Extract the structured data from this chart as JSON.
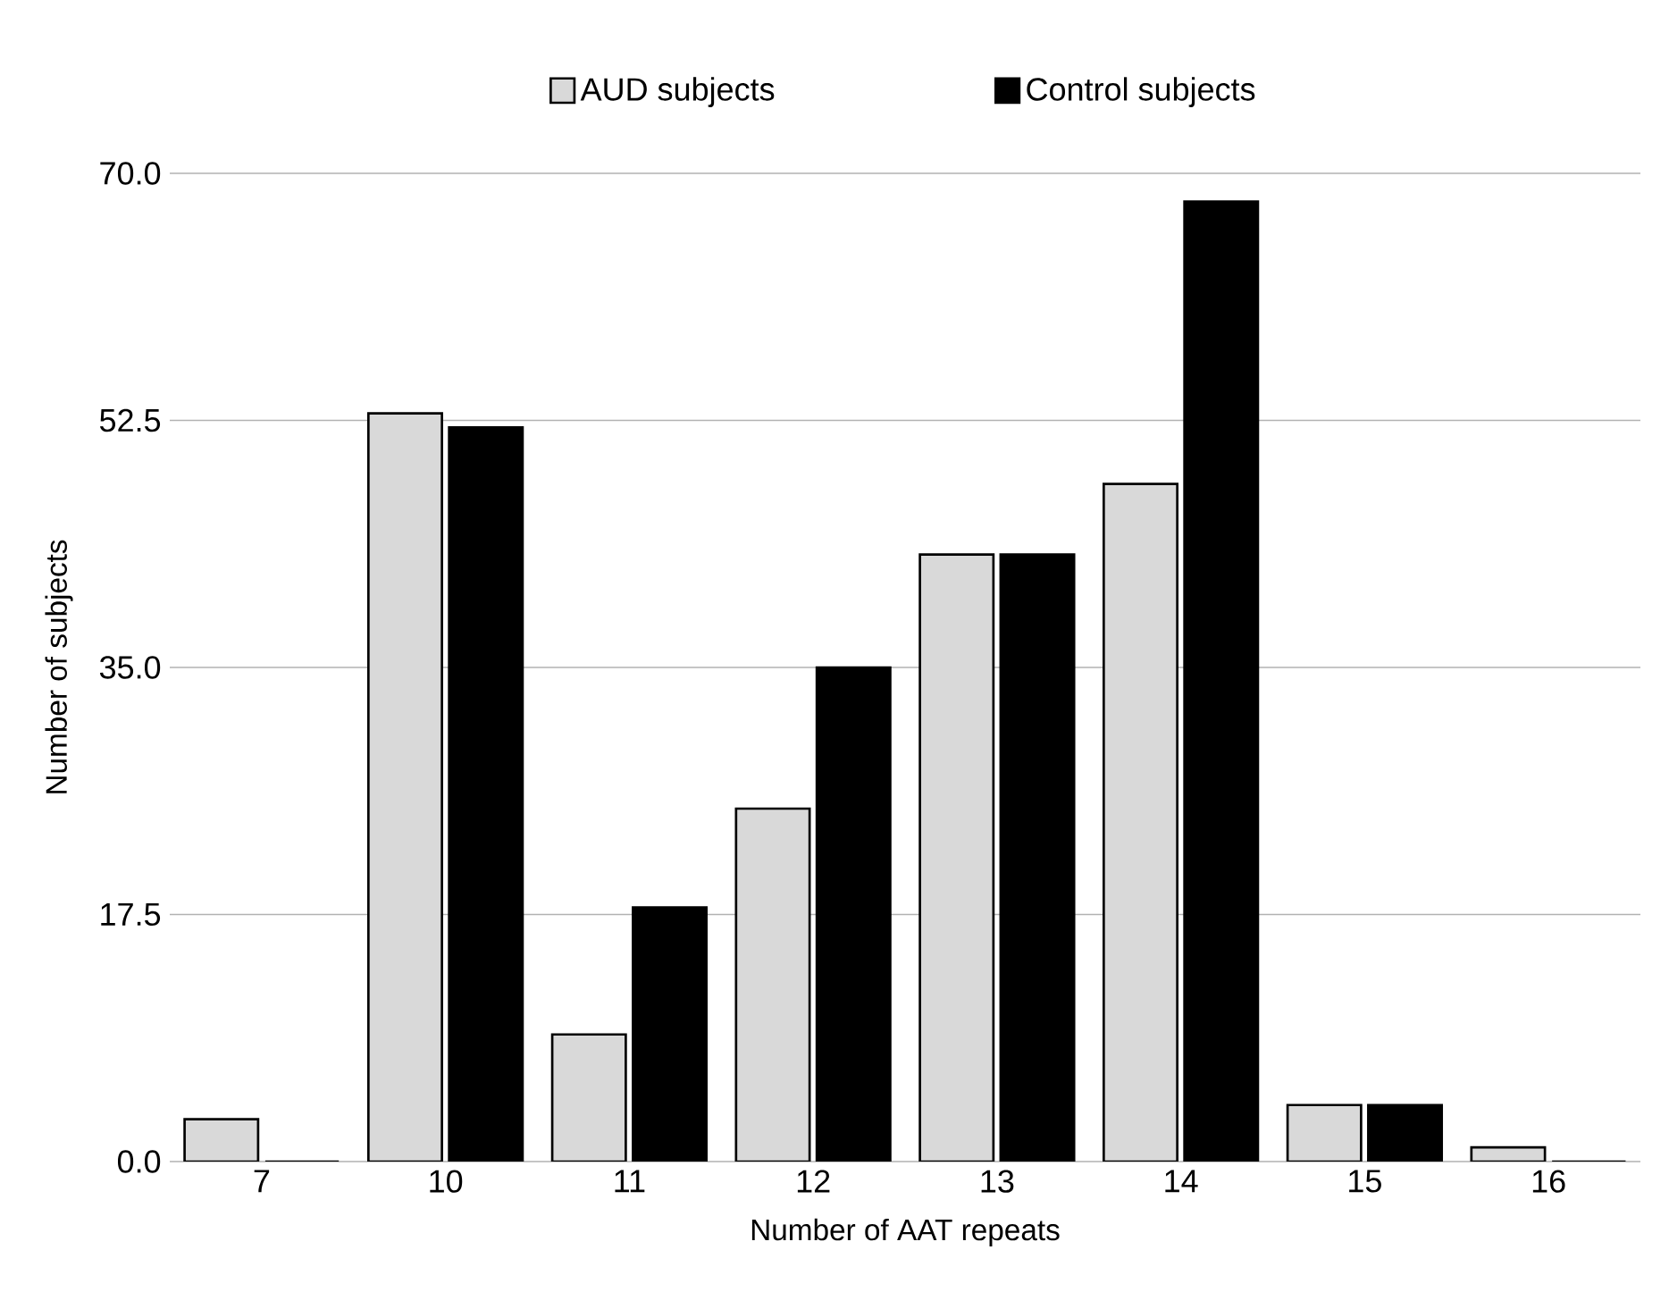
{
  "chart_data": {
    "type": "bar",
    "xlabel": "Number of AAT repeats",
    "ylabel": "Number of subjects",
    "categories": [
      "7",
      "10",
      "11",
      "12",
      "13",
      "14",
      "15",
      "16"
    ],
    "series": [
      {
        "name": "AUD subjects",
        "color": "#d9d9d9",
        "values": [
          3,
          53,
          9,
          25,
          43,
          48,
          4,
          1
        ]
      },
      {
        "name": "Control subjects",
        "color": "#000000",
        "values": [
          0,
          52,
          18,
          35,
          43,
          68,
          4,
          0
        ]
      }
    ],
    "ylim": [
      0,
      70
    ],
    "yticks": [
      {
        "value": 0,
        "label": "0.0"
      },
      {
        "value": 17.5,
        "label": "17.5"
      },
      {
        "value": 35,
        "label": "35.0"
      },
      {
        "value": 52.5,
        "label": "52.5"
      },
      {
        "value": 70,
        "label": "70.0"
      }
    ],
    "grid": "y",
    "legend": "top"
  }
}
